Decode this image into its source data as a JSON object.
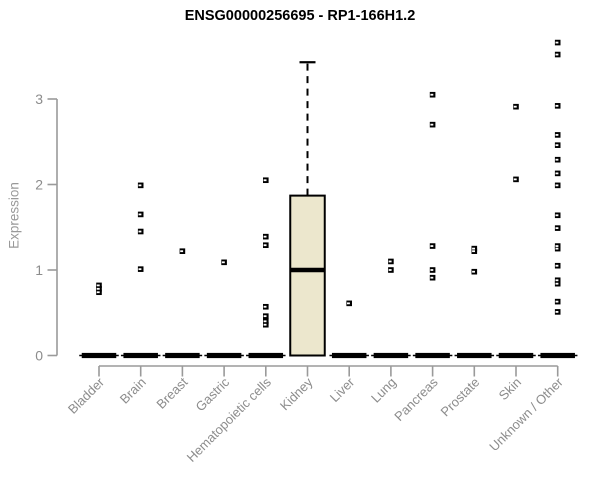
{
  "title": "ENSG00000256695 - RP1-166H1.2",
  "colors": {
    "box_fill": "#ECE7CD",
    "box_border": "#000000",
    "point": "#000000",
    "axis": "#9A9A9A",
    "tick_label": "#8C8C8C",
    "title": "#000000",
    "background": "#FFFFFF"
  },
  "chart_data": {
    "type": "boxplot",
    "title": "ENSG00000256695 - RP1-166H1.2",
    "xlabel": "",
    "ylabel": "Expression",
    "ylim": [
      0,
      3.7
    ],
    "yticks": [
      0,
      1,
      2,
      3
    ],
    "grid": false,
    "legend": "none",
    "categories": [
      "Bladder",
      "Brain",
      "Breast",
      "Gastric",
      "Hematopoietic cells",
      "Kidney",
      "Liver",
      "Lung",
      "Pancreas",
      "Prostate",
      "Skin",
      "Unknown / Other"
    ],
    "series": [
      {
        "name": "Bladder",
        "q1": 0,
        "median": 0,
        "q3": 0,
        "whisker_low": 0,
        "whisker_high": 0,
        "outliers": [
          0.82,
          0.78,
          0.74
        ]
      },
      {
        "name": "Brain",
        "q1": 0,
        "median": 0,
        "q3": 0,
        "whisker_low": 0,
        "whisker_high": 0,
        "outliers": [
          1.99,
          1.65,
          1.45,
          1.01
        ]
      },
      {
        "name": "Breast",
        "q1": 0,
        "median": 0,
        "q3": 0,
        "whisker_low": 0,
        "whisker_high": 0,
        "outliers": [
          1.22
        ]
      },
      {
        "name": "Gastric",
        "q1": 0,
        "median": 0,
        "q3": 0,
        "whisker_low": 0,
        "whisker_high": 0,
        "outliers": [
          1.09
        ]
      },
      {
        "name": "Hematopoietic cells",
        "q1": 0,
        "median": 0,
        "q3": 0,
        "whisker_low": 0,
        "whisker_high": 0,
        "outliers": [
          2.05,
          1.39,
          1.29,
          0.57,
          0.46,
          0.4,
          0.36
        ]
      },
      {
        "name": "Kidney",
        "q1": 0,
        "median": 1.0,
        "q3": 1.87,
        "whisker_low": 0,
        "whisker_high": 3.43,
        "outliers": []
      },
      {
        "name": "Liver",
        "q1": 0,
        "median": 0,
        "q3": 0,
        "whisker_low": 0,
        "whisker_high": 0,
        "outliers": [
          0.61
        ]
      },
      {
        "name": "Lung",
        "q1": 0,
        "median": 0,
        "q3": 0,
        "whisker_low": 0,
        "whisker_high": 0,
        "outliers": [
          1.1,
          1.0
        ]
      },
      {
        "name": "Pancreas",
        "q1": 0,
        "median": 0,
        "q3": 0,
        "whisker_low": 0,
        "whisker_high": 0,
        "outliers": [
          3.05,
          2.7,
          1.28,
          1.0,
          0.91
        ]
      },
      {
        "name": "Prostate",
        "q1": 0,
        "median": 0,
        "q3": 0,
        "whisker_low": 0,
        "whisker_high": 0,
        "outliers": [
          1.25,
          1.22,
          0.98
        ]
      },
      {
        "name": "Skin",
        "q1": 0,
        "median": 0,
        "q3": 0,
        "whisker_low": 0,
        "whisker_high": 0,
        "outliers": [
          2.91,
          2.06
        ]
      },
      {
        "name": "Unknown / Other",
        "q1": 0,
        "median": 0,
        "q3": 0,
        "whisker_low": 0,
        "whisker_high": 0,
        "outliers": [
          3.66,
          3.52,
          2.92,
          2.58,
          2.46,
          2.29,
          2.13,
          1.99,
          1.64,
          1.49,
          1.28,
          1.25,
          1.05,
          0.88,
          0.84,
          0.63,
          0.51
        ]
      }
    ]
  }
}
